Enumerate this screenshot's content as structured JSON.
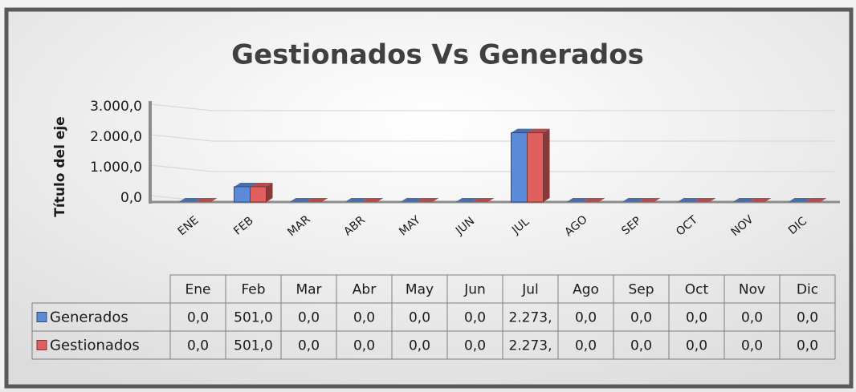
{
  "chart_data": {
    "type": "bar",
    "title": "Gestionados Vs Generados",
    "y_axis_label": "Título del eje",
    "categories": [
      "ENE",
      "FEB",
      "MAR",
      "ABR",
      "MAY",
      "JUN",
      "JUL",
      "AGO",
      "SEP",
      "OCT",
      "NOV",
      "DIC"
    ],
    "table_categories": [
      "Ene",
      "Feb",
      "Mar",
      "Abr",
      "May",
      "Jun",
      "Jul",
      "Ago",
      "Sep",
      "Oct",
      "Nov",
      "Dic"
    ],
    "series": [
      {
        "name": "Generados",
        "color": "#5b8ad8",
        "values": [
          0,
          501,
          0,
          0,
          0,
          0,
          2273,
          0,
          0,
          0,
          0,
          0
        ],
        "value_labels": [
          "0,0",
          "501,0",
          "0,0",
          "0,0",
          "0,0",
          "0,0",
          "2.273,",
          "0,0",
          "0,0",
          "0,0",
          "0,0",
          "0,0"
        ]
      },
      {
        "name": "Gestionados",
        "color": "#e06060",
        "values": [
          0,
          501,
          0,
          0,
          0,
          0,
          2273,
          0,
          0,
          0,
          0,
          0
        ],
        "value_labels": [
          "0,0",
          "501,0",
          "0,0",
          "0,0",
          "0,0",
          "0,0",
          "2.273,",
          "0,0",
          "0,0",
          "0,0",
          "0,0",
          "0,0"
        ]
      }
    ],
    "ylim": [
      0,
      3000
    ],
    "yticks": [
      {
        "value": 0,
        "label": "0,0"
      },
      {
        "value": 1000,
        "label": "1.000,0"
      },
      {
        "value": 2000,
        "label": "2.000,0"
      },
      {
        "value": 3000,
        "label": "3.000,0"
      }
    ],
    "grid": true
  }
}
